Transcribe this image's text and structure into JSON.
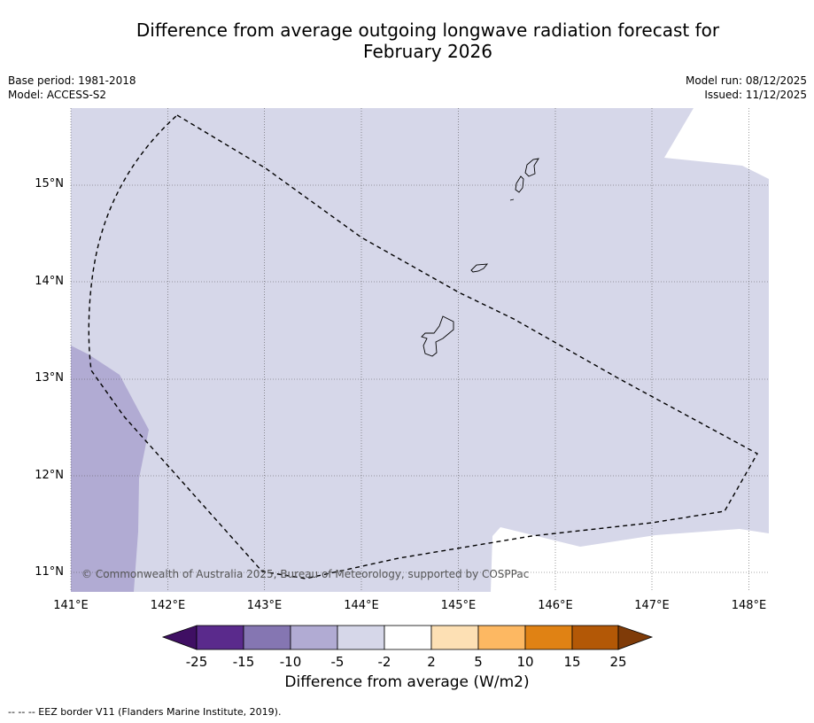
{
  "title_line1": "Difference from average outgoing longwave radiation forecast for",
  "title_line2": "February 2026",
  "base_period": "Base period: 1981-2018",
  "model": "Model: ACCESS-S2",
  "model_run": "Model run: 08/12/2025",
  "issued": "Issued: 11/12/2025",
  "copyright": "© Commonwealth of Australia 2025, Bureau of Meteorology, supported by COSPPac",
  "map": {
    "extent": {
      "lon_min": 141.0,
      "lon_max": 148.2,
      "lat_min": 10.8,
      "lat_max": 15.8
    },
    "lat_ticks": [
      "15°N",
      "14°N",
      "13°N",
      "12°N",
      "11°N"
    ],
    "lon_ticks": [
      "141°E",
      "142°E",
      "143°E",
      "144°E",
      "145°E",
      "146°E",
      "147°E",
      "148°E"
    ],
    "colors": {
      "minus5_minus2": "#d6d7e9",
      "minus10_minus5": "#b1abd3",
      "ocean_blank": "#ffffff"
    }
  },
  "colorbar": {
    "ticks": [
      "-25",
      "-15",
      "-10",
      "-5",
      "-2",
      "2",
      "5",
      "10",
      "15",
      "25"
    ],
    "colors": [
      "#3f0f63",
      "#5a2a8c",
      "#8576b2",
      "#b1abd3",
      "#d6d7e9",
      "#ffffff",
      "#fde0b4",
      "#fdb862",
      "#e08214",
      "#b35806",
      "#7f3b08"
    ],
    "label": "Difference from average (W/m2)"
  },
  "footer": "--  --  -- EEZ border V11 (Flanders Marine Institute, 2019)."
}
